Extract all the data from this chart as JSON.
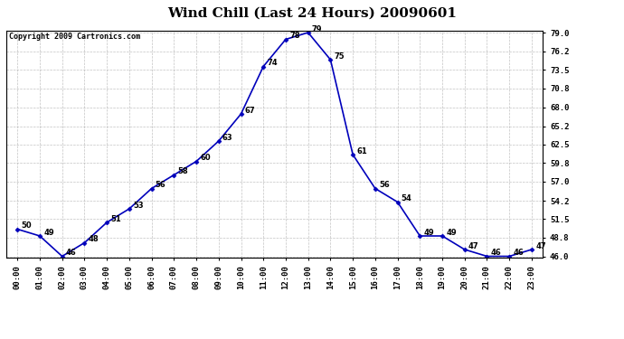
{
  "title": "Wind Chill (Last 24 Hours) 20090601",
  "copyright": "Copyright 2009 Cartronics.com",
  "hours": [
    "00:00",
    "01:00",
    "02:00",
    "03:00",
    "04:00",
    "05:00",
    "06:00",
    "07:00",
    "08:00",
    "09:00",
    "10:00",
    "11:00",
    "12:00",
    "13:00",
    "14:00",
    "15:00",
    "16:00",
    "17:00",
    "18:00",
    "19:00",
    "20:00",
    "21:00",
    "22:00",
    "23:00"
  ],
  "values": [
    50,
    49,
    46,
    48,
    51,
    53,
    56,
    58,
    60,
    63,
    67,
    74,
    78,
    79,
    75,
    61,
    56,
    54,
    49,
    49,
    47,
    46,
    46,
    47
  ],
  "line_color": "#0000bb",
  "marker_color": "#0000bb",
  "bg_color": "#ffffff",
  "plot_bg_color": "#ffffff",
  "grid_color": "#aaaaaa",
  "ylim_min": 46.0,
  "ylim_max": 79.0,
  "yticks": [
    46.0,
    48.8,
    51.5,
    54.2,
    57.0,
    59.8,
    62.5,
    65.2,
    68.0,
    70.8,
    73.5,
    76.2,
    79.0
  ],
  "title_fontsize": 11,
  "label_fontsize": 6,
  "tick_fontsize": 6.5,
  "copyright_fontsize": 6
}
